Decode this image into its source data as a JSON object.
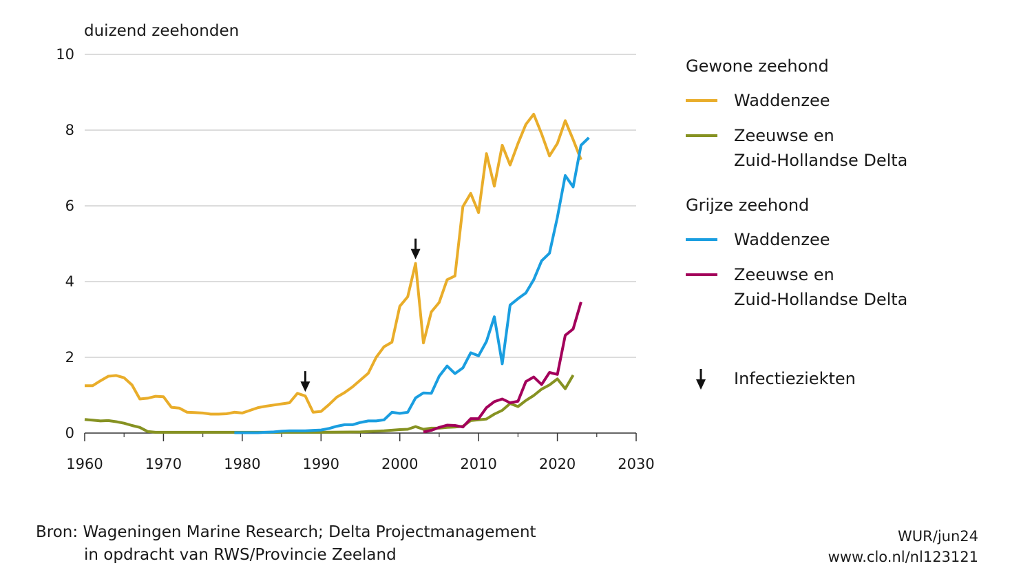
{
  "chart_data": {
    "type": "line",
    "ylabel": "duizend zeehonden",
    "xlim": [
      1960,
      2030
    ],
    "ylim": [
      0,
      10
    ],
    "x_ticks": [
      "1960",
      "1970",
      "1980",
      "1990",
      "2000",
      "2010",
      "2020",
      "2030"
    ],
    "y_ticks": [
      "0",
      "2",
      "4",
      "6",
      "8",
      "10"
    ],
    "grid": "horizontal",
    "legend_position": "right",
    "legend_groups": [
      {
        "title": "Gewone zeehond",
        "series_index": [
          0,
          1
        ]
      },
      {
        "title": "Grijze zeehond",
        "series_index": [
          2,
          3
        ]
      }
    ],
    "series": [
      {
        "name": "Waddenzee",
        "label_lines": [
          "Waddenzee"
        ],
        "color": "#e9ad2a",
        "x": [
          1960,
          1961,
          1962,
          1963,
          1964,
          1965,
          1966,
          1967,
          1968,
          1969,
          1970,
          1971,
          1972,
          1973,
          1974,
          1975,
          1976,
          1977,
          1978,
          1979,
          1980,
          1981,
          1982,
          1983,
          1984,
          1985,
          1986,
          1987,
          1988,
          1989,
          1990,
          1991,
          1992,
          1993,
          1994,
          1995,
          1996,
          1997,
          1998,
          1999,
          2000,
          2001,
          2002,
          2003,
          2004,
          2005,
          2006,
          2007,
          2008,
          2009,
          2010,
          2011,
          2012,
          2013,
          2014,
          2015,
          2016,
          2017,
          2018,
          2019,
          2020,
          2021,
          2022,
          2023
        ],
        "y": [
          1.25,
          1.25,
          1.38,
          1.5,
          1.52,
          1.46,
          1.27,
          0.9,
          0.92,
          0.97,
          0.96,
          0.68,
          0.66,
          0.55,
          0.54,
          0.53,
          0.5,
          0.5,
          0.51,
          0.55,
          0.53,
          0.6,
          0.67,
          0.71,
          0.74,
          0.77,
          0.8,
          1.05,
          0.98,
          0.55,
          0.57,
          0.75,
          0.95,
          1.07,
          1.22,
          1.4,
          1.58,
          2.0,
          2.28,
          2.4,
          3.35,
          3.6,
          4.48,
          2.38,
          3.2,
          3.45,
          4.05,
          4.15,
          5.98,
          6.33,
          5.82,
          7.38,
          6.52,
          7.6,
          7.08,
          7.65,
          8.15,
          8.42,
          7.9,
          7.32,
          7.65,
          8.25,
          7.75,
          7.22
        ]
      },
      {
        "name": "Zeeuwse en Zuid-Hollandse Delta",
        "label_lines": [
          "Zeeuwse en",
          "Zuid-Hollandse Delta"
        ],
        "color": "#869222",
        "x": [
          1960,
          1961,
          1962,
          1963,
          1964,
          1965,
          1966,
          1967,
          1968,
          1969,
          1970,
          1975,
          1980,
          1985,
          1990,
          1995,
          1998,
          2000,
          2001,
          2002,
          2003,
          2004,
          2005,
          2006,
          2007,
          2008,
          2009,
          2010,
          2011,
          2012,
          2013,
          2014,
          2015,
          2016,
          2017,
          2018,
          2019,
          2020,
          2021,
          2022
        ],
        "y": [
          0.36,
          0.34,
          0.32,
          0.33,
          0.3,
          0.26,
          0.2,
          0.15,
          0.04,
          0.02,
          0.02,
          0.02,
          0.02,
          0.02,
          0.02,
          0.03,
          0.06,
          0.09,
          0.1,
          0.17,
          0.1,
          0.13,
          0.13,
          0.15,
          0.16,
          0.18,
          0.33,
          0.35,
          0.37,
          0.5,
          0.6,
          0.78,
          0.7,
          0.86,
          0.99,
          1.16,
          1.27,
          1.43,
          1.17,
          1.53
        ]
      },
      {
        "name": "Waddenzee",
        "label_lines": [
          "Waddenzee"
        ],
        "color": "#1a9ee0",
        "x": [
          1979,
          1980,
          1981,
          1982,
          1983,
          1984,
          1985,
          1986,
          1987,
          1988,
          1989,
          1990,
          1991,
          1992,
          1993,
          1994,
          1995,
          1996,
          1997,
          1998,
          1999,
          2000,
          2001,
          2002,
          2003,
          2004,
          2005,
          2006,
          2007,
          2008,
          2009,
          2010,
          2011,
          2012,
          2013,
          2014,
          2015,
          2016,
          2017,
          2018,
          2019,
          2020,
          2021,
          2022,
          2023,
          2024
        ],
        "y": [
          0.01,
          0.01,
          0.01,
          0.01,
          0.02,
          0.03,
          0.05,
          0.06,
          0.06,
          0.06,
          0.07,
          0.08,
          0.12,
          0.18,
          0.22,
          0.22,
          0.28,
          0.32,
          0.32,
          0.35,
          0.55,
          0.52,
          0.55,
          0.93,
          1.06,
          1.05,
          1.5,
          1.77,
          1.57,
          1.72,
          2.12,
          2.04,
          2.42,
          3.07,
          1.83,
          3.38,
          3.55,
          3.7,
          4.05,
          4.55,
          4.75,
          5.7,
          6.8,
          6.5,
          7.6,
          7.8
        ]
      },
      {
        "name": "Zeeuwse en Zuid-Hollandse Delta",
        "label_lines": [
          "Zeeuwse en",
          "Zuid-Hollandse Delta"
        ],
        "color": "#a3005b",
        "x": [
          2003,
          2004,
          2005,
          2006,
          2007,
          2008,
          2009,
          2010,
          2011,
          2012,
          2013,
          2014,
          2015,
          2016,
          2017,
          2018,
          2019,
          2020,
          2021,
          2022,
          2023
        ],
        "y": [
          0.03,
          0.07,
          0.15,
          0.21,
          0.2,
          0.16,
          0.38,
          0.38,
          0.67,
          0.83,
          0.9,
          0.8,
          0.84,
          1.36,
          1.48,
          1.28,
          1.6,
          1.55,
          2.58,
          2.75,
          3.46
        ]
      }
    ],
    "annotations": [
      {
        "type": "arrow",
        "x": 1988,
        "y": 0.98
      },
      {
        "type": "arrow",
        "x": 2002,
        "y": 4.48
      }
    ],
    "annotation_legend": "Infectieziekten"
  },
  "footer": {
    "source_line1": "Bron: Wageningen Marine Research; Delta Projectmanagement",
    "source_line2": "in opdracht van RWS/Provincie Zeeland",
    "credit_line1": "WUR/jun24",
    "credit_line2": "www.clo.nl/nl123121"
  }
}
